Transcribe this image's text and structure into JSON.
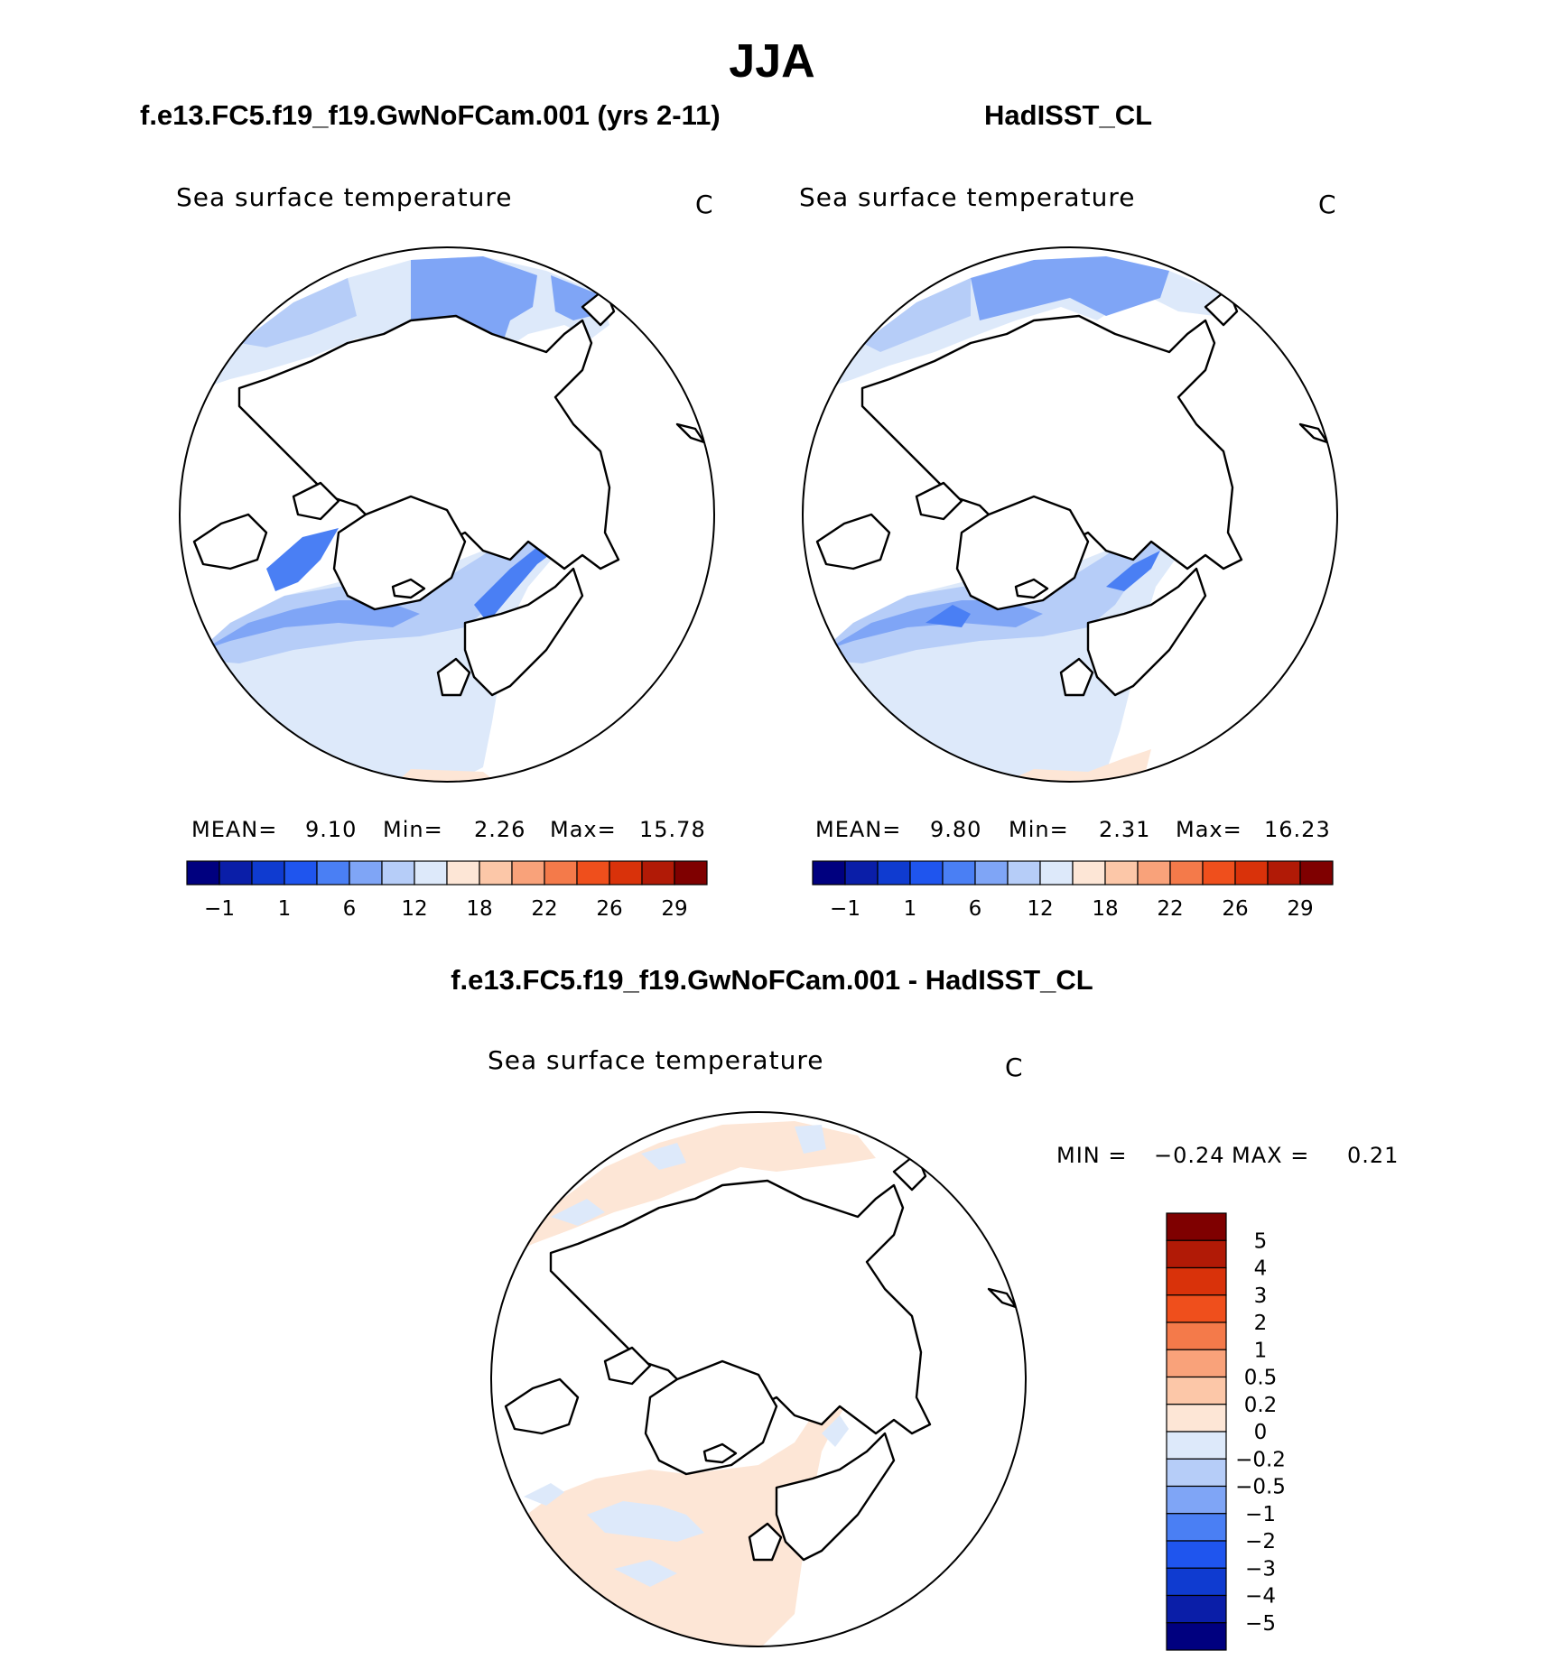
{
  "title": "JJA",
  "panels": {
    "model": {
      "case": "f.e13.FC5.f19_f19.GwNoFCam.001 (yrs 2-11)",
      "variable": "Sea surface temperature",
      "units": "C",
      "mean_label": "MEAN=",
      "mean": "9.10",
      "min_label": "Min=",
      "min": "2.26",
      "max_label": "Max=",
      "max": "15.78"
    },
    "obs": {
      "case": "HadISST_CL",
      "variable": "Sea surface temperature",
      "units": "C",
      "mean_label": "MEAN=",
      "mean": "9.80",
      "min_label": "Min=",
      "min": "2.31",
      "max_label": "Max=",
      "max": "16.23"
    },
    "diff": {
      "case": "f.e13.FC5.f19_f19.GwNoFCam.001 - HadISST_CL",
      "variable": "Sea surface temperature",
      "units": "C",
      "min_label": "MIN =",
      "min": "−0.24",
      "max_label": "MAX =",
      "max": "0.21"
    }
  },
  "colorbar_abs": {
    "colors": [
      "#00007f",
      "#0a1ea8",
      "#0f3bd0",
      "#1f55ee",
      "#4a7ff4",
      "#7fa5f6",
      "#b6cdf8",
      "#dde9fa",
      "#fde6d6",
      "#fcc7a8",
      "#f9a27a",
      "#f47a4a",
      "#ef4f1c",
      "#d9320a",
      "#b11a06",
      "#7f0000"
    ],
    "labels": [
      "−1",
      "1",
      "6",
      "12",
      "18",
      "22",
      "26",
      "29"
    ]
  },
  "colorbar_diff": {
    "colors": [
      "#7f0000",
      "#b11a06",
      "#d9320a",
      "#ef4f1c",
      "#f47a4a",
      "#f9a27a",
      "#fcc7a8",
      "#fde6d6",
      "#dde9fa",
      "#b6cdf8",
      "#7fa5f6",
      "#4a7ff4",
      "#1f55ee",
      "#0f3bd0",
      "#0a1ea8",
      "#00007f"
    ],
    "labels": [
      "5",
      "4",
      "3",
      "2",
      "1",
      "0.5",
      "0.2",
      "0",
      "−0.2",
      "−0.5",
      "−1",
      "−2",
      "−3",
      "−4",
      "−5"
    ]
  }
}
